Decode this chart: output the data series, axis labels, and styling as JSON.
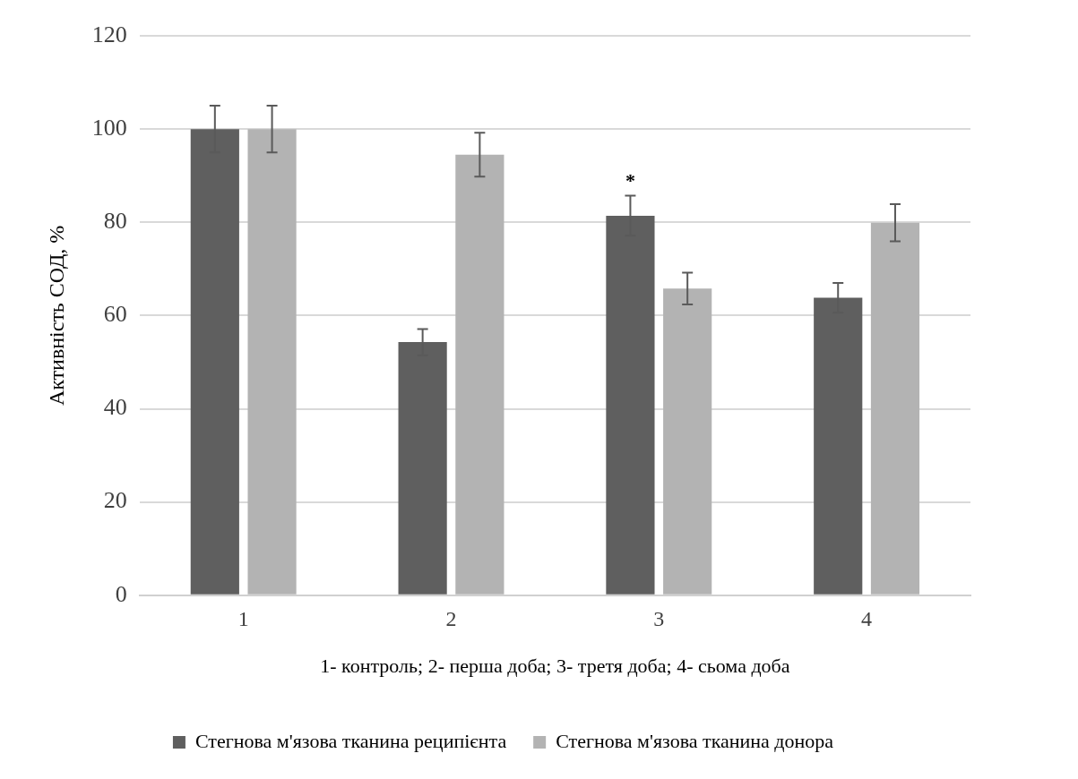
{
  "chart_data": {
    "type": "bar",
    "xlabel": "1- контроль; 2- перша доба; 3- третя доба; 4- сьома доба",
    "ylabel": "Активність СОД, %",
    "categories": [
      "1",
      "2",
      "3",
      "4"
    ],
    "series": [
      {
        "name": "Стегнова м'язова тканина реципієнта",
        "color": "#5f5f5f",
        "values": [
          100,
          54.3,
          81.4,
          63.8
        ],
        "errors": [
          5,
          2.8,
          4.3,
          3.2
        ]
      },
      {
        "name": "Стегнова м'язова тканина донора",
        "color": "#b3b3b3",
        "values": [
          100,
          94.5,
          65.8,
          79.9
        ],
        "errors": [
          5,
          4.7,
          3.4,
          4
        ]
      }
    ],
    "ylim": [
      0,
      120
    ],
    "yticks": [
      0,
      20,
      40,
      60,
      80,
      100,
      120
    ],
    "grid": "y",
    "legend": "bottom",
    "annotations": [
      {
        "text": "*",
        "x": "3",
        "y": 81.4
      }
    ]
  }
}
